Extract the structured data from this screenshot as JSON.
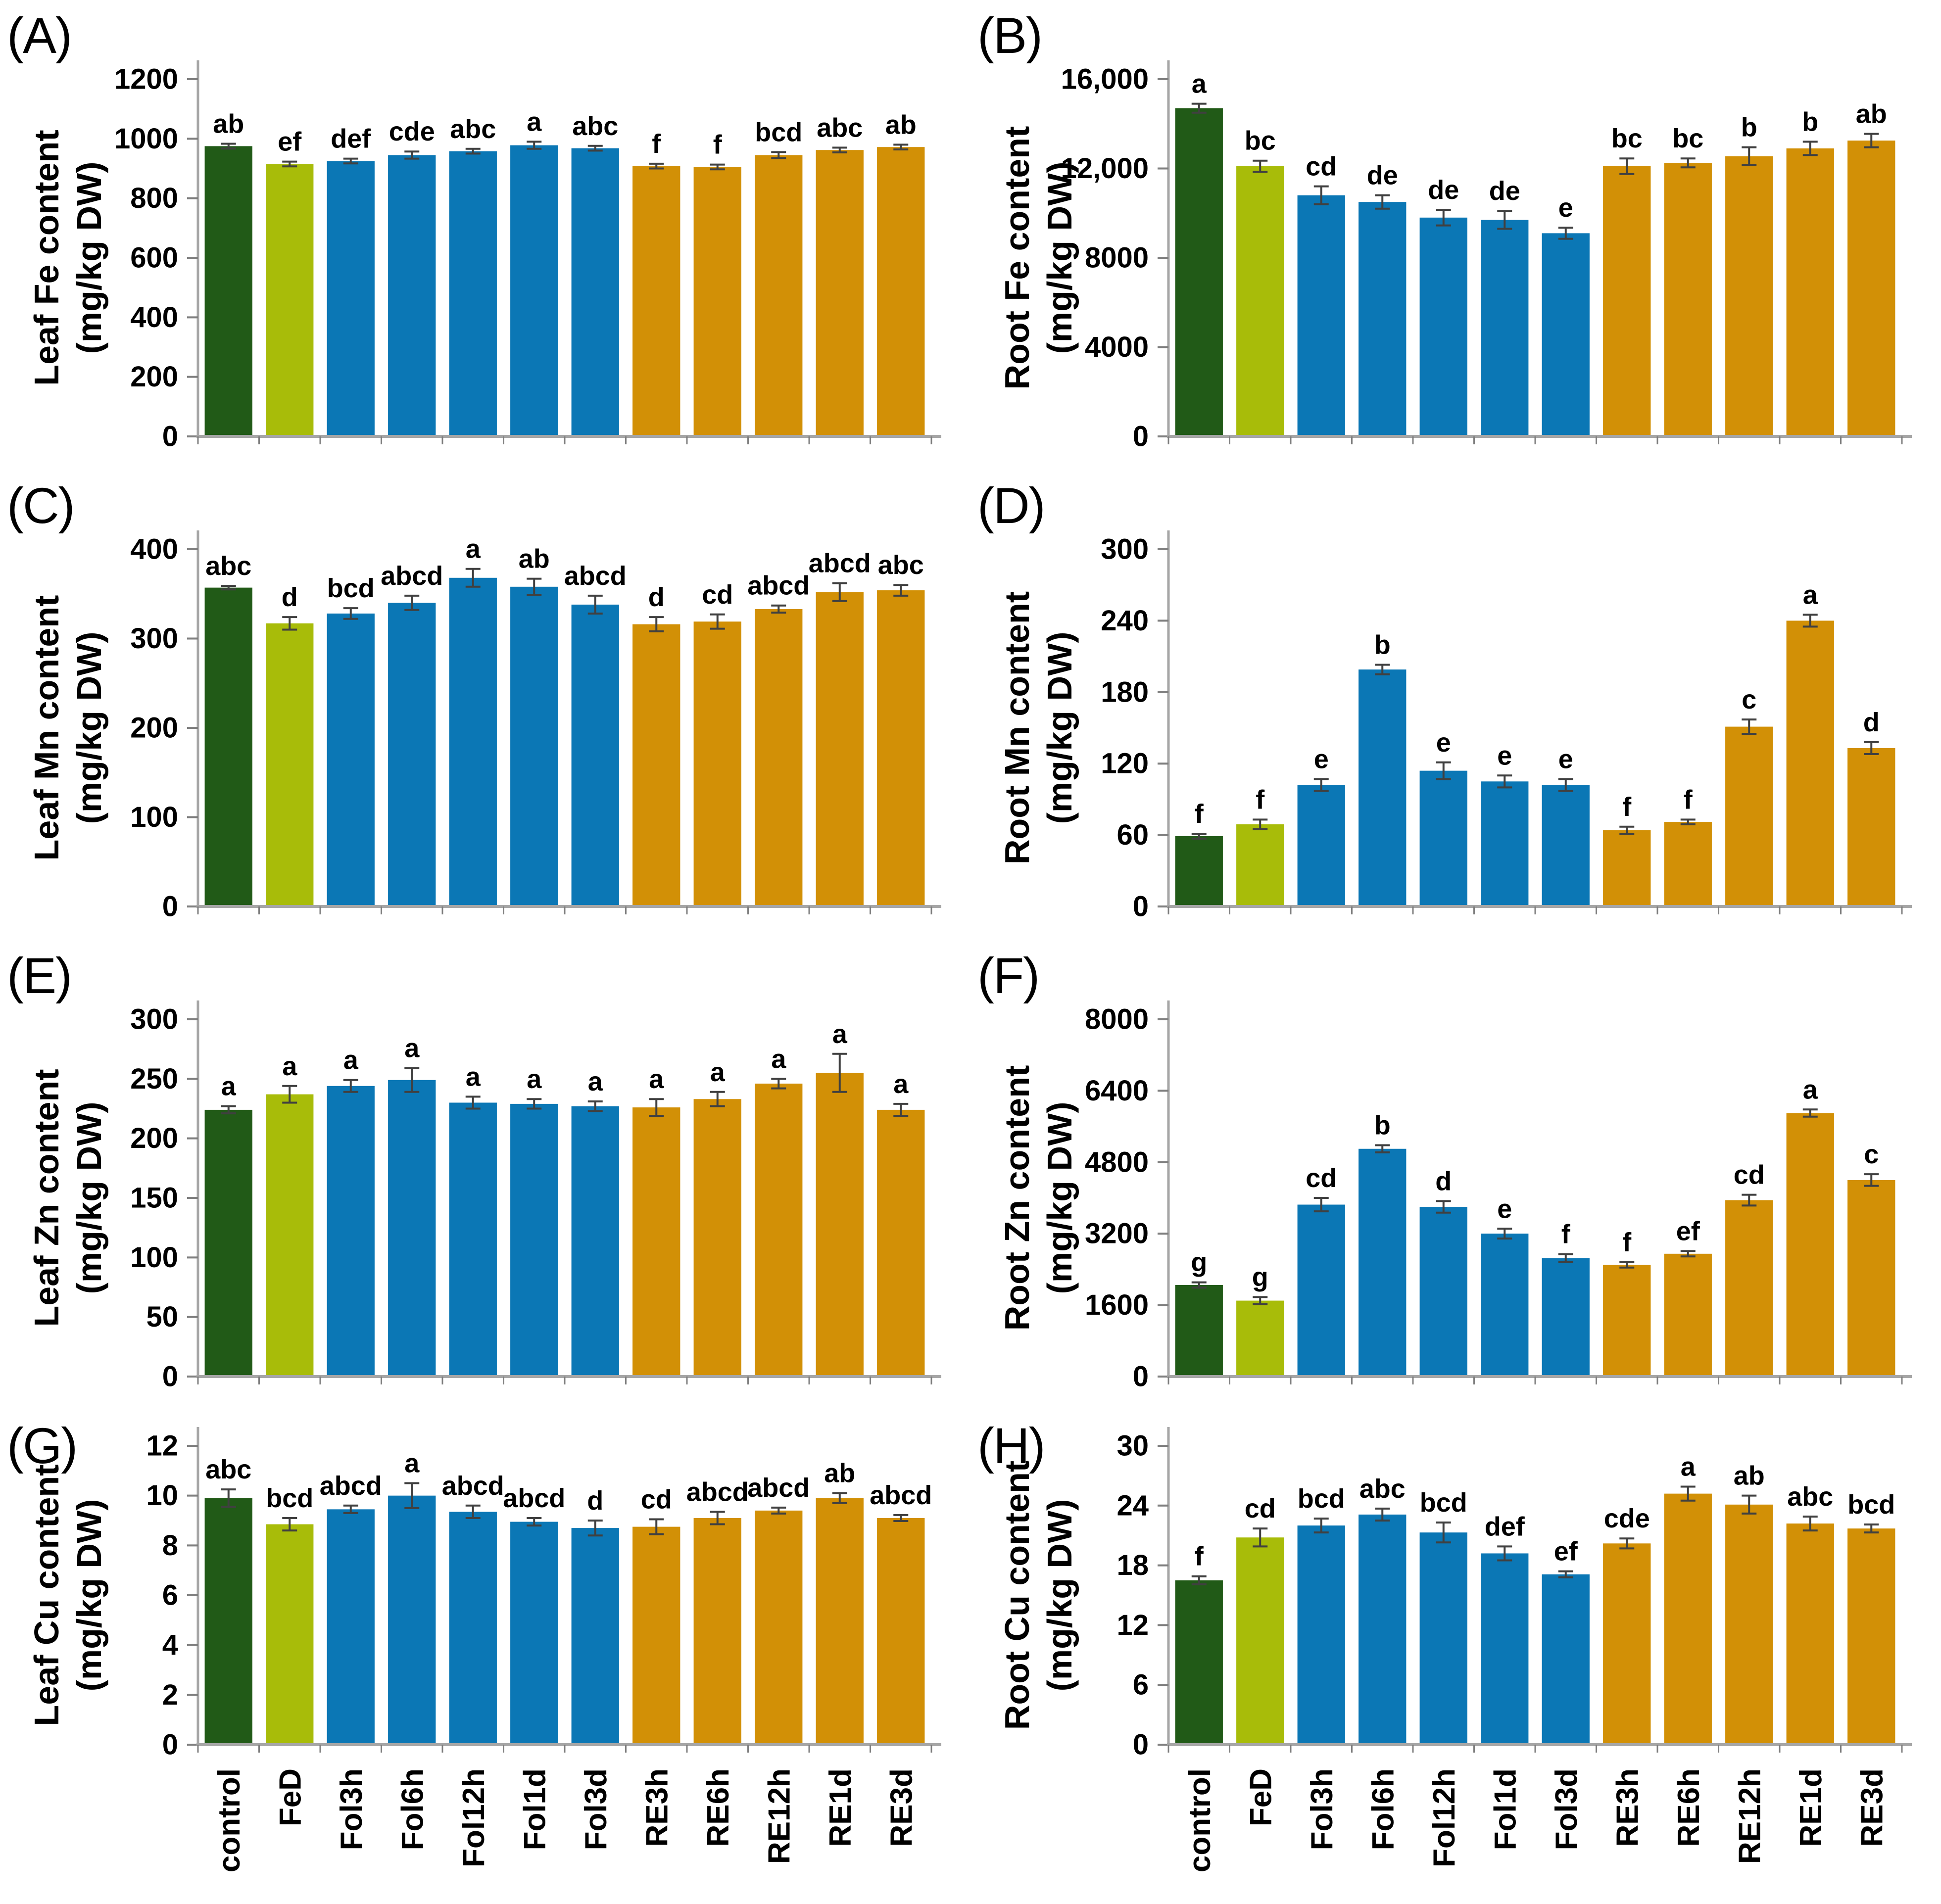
{
  "categories": [
    "control",
    "FeD",
    "Fol3h",
    "Fol6h",
    "Fol12h",
    "Fol1d",
    "Fol3d",
    "RE3h",
    "RE6h",
    "RE12h",
    "RE1d",
    "RE3d"
  ],
  "category_groups": [
    "control",
    "fed",
    "fol",
    "fol",
    "fol",
    "fol",
    "fol",
    "re",
    "re",
    "re",
    "re",
    "re"
  ],
  "colors": {
    "control": "#215a17",
    "fed": "#a8bc09",
    "fol": "#0b77b5",
    "re": "#d29006",
    "axis": "#a6a6a6",
    "tick": "#7f7f7f",
    "error": "#404040",
    "text": "#000000"
  },
  "chart_data": [
    {
      "type": "bar",
      "panel": "(A)",
      "ylabel_lines": [
        "Leaf Fe content",
        "(mg/kg DW)"
      ],
      "ylim": [
        0,
        1200
      ],
      "ytick_values": [
        0,
        200,
        400,
        600,
        800,
        1000,
        1200
      ],
      "ytick_labels": [
        "0",
        "200",
        "400",
        "600",
        "800",
        "1000",
        "1200"
      ],
      "values": [
        975,
        915,
        925,
        945,
        958,
        978,
        968,
        908,
        905,
        945,
        962,
        972
      ],
      "errors": [
        8,
        8,
        8,
        12,
        8,
        12,
        8,
        8,
        8,
        10,
        8,
        8
      ],
      "letters": [
        "ab",
        "ef",
        "def",
        "cde",
        "abc",
        "a",
        "abc",
        "f",
        "f",
        "bcd",
        "abc",
        "ab"
      ]
    },
    {
      "type": "bar",
      "panel": "(B)",
      "ylabel_lines": [
        "Root Fe content",
        "(mg/kg DW)"
      ],
      "ylim": [
        0,
        16000
      ],
      "ytick_values": [
        0,
        4000,
        8000,
        12000,
        16000
      ],
      "ytick_labels": [
        "0",
        "4000",
        "8000",
        "12,000",
        "16,000"
      ],
      "values": [
        14700,
        12100,
        10800,
        10500,
        9800,
        9700,
        9100,
        12100,
        12250,
        12550,
        12900,
        13250
      ],
      "errors": [
        200,
        250,
        400,
        300,
        350,
        400,
        250,
        350,
        200,
        400,
        300,
        300
      ],
      "letters": [
        "a",
        "bc",
        "cd",
        "de",
        "de",
        "de",
        "e",
        "bc",
        "bc",
        "b",
        "b",
        "ab"
      ]
    },
    {
      "type": "bar",
      "panel": "(C)",
      "ylabel_lines": [
        "Leaf Mn content",
        "(mg/kg DW)"
      ],
      "ylim": [
        0,
        400
      ],
      "ytick_values": [
        0,
        100,
        200,
        300,
        400
      ],
      "ytick_labels": [
        "0",
        "100",
        "200",
        "300",
        "400"
      ],
      "values": [
        357,
        317,
        328,
        340,
        368,
        358,
        338,
        316,
        319,
        333,
        352,
        354
      ],
      "errors": [
        2,
        7,
        6,
        8,
        10,
        9,
        10,
        8,
        8,
        4,
        10,
        6
      ],
      "letters": [
        "abc",
        "d",
        "bcd",
        "abcd",
        "a",
        "ab",
        "abcd",
        "d",
        "cd",
        "abcd",
        "abcd",
        "abc"
      ]
    },
    {
      "type": "bar",
      "panel": "(D)",
      "ylabel_lines": [
        "Root Mn content",
        "(mg/kg DW)"
      ],
      "ylim": [
        0,
        300
      ],
      "ytick_values": [
        0,
        60,
        120,
        180,
        240,
        300
      ],
      "ytick_labels": [
        "0",
        "60",
        "120",
        "180",
        "240",
        "300"
      ],
      "values": [
        59,
        69,
        102,
        199,
        114,
        105,
        102,
        64,
        71,
        151,
        240,
        133
      ],
      "errors": [
        2,
        4,
        5,
        4,
        7,
        5,
        5,
        3,
        2,
        6,
        5,
        5
      ],
      "letters": [
        "f",
        "f",
        "e",
        "b",
        "e",
        "e",
        "e",
        "f",
        "f",
        "c",
        "a",
        "d"
      ]
    },
    {
      "type": "bar",
      "panel": "(E)",
      "ylabel_lines": [
        "Leaf Zn content",
        "(mg/kg DW)"
      ],
      "ylim": [
        0,
        300
      ],
      "ytick_values": [
        0,
        50,
        100,
        150,
        200,
        250,
        300
      ],
      "ytick_labels": [
        "0",
        "50",
        "100",
        "150",
        "200",
        "250",
        "300"
      ],
      "values": [
        224,
        237,
        244,
        249,
        230,
        229,
        227,
        226,
        233,
        246,
        255,
        224
      ],
      "errors": [
        3,
        7,
        5,
        10,
        5,
        4,
        4,
        7,
        6,
        4,
        16,
        5
      ],
      "letters": [
        "a",
        "a",
        "a",
        "a",
        "a",
        "a",
        "a",
        "a",
        "a",
        "a",
        "a",
        "a"
      ]
    },
    {
      "type": "bar",
      "panel": "(F)",
      "ylabel_lines": [
        "Root Zn content",
        "(mg/kg DW)"
      ],
      "ylim": [
        0,
        8000
      ],
      "ytick_values": [
        0,
        1600,
        3200,
        4800,
        6400,
        8000
      ],
      "ytick_labels": [
        "0",
        "1600",
        "3200",
        "4800",
        "6400",
        "8000"
      ],
      "values": [
        2050,
        1700,
        3850,
        5100,
        3800,
        3200,
        2650,
        2500,
        2750,
        3950,
        5900,
        4400
      ],
      "errors": [
        60,
        80,
        150,
        80,
        130,
        110,
        90,
        60,
        60,
        120,
        80,
        130
      ],
      "letters": [
        "g",
        "g",
        "cd",
        "b",
        "d",
        "e",
        "f",
        "f",
        "ef",
        "cd",
        "a",
        "c"
      ]
    },
    {
      "type": "bar",
      "panel": "(G)",
      "ylabel_lines": [
        "Leaf Cu content",
        "(mg/kg DW)"
      ],
      "ylim": [
        0,
        12
      ],
      "ytick_values": [
        0,
        2,
        4,
        6,
        8,
        10,
        12
      ],
      "ytick_labels": [
        "0",
        "2",
        "4",
        "6",
        "8",
        "10",
        "12"
      ],
      "values": [
        9.9,
        8.85,
        9.45,
        10.0,
        9.35,
        8.95,
        8.7,
        8.75,
        9.1,
        9.4,
        9.9,
        9.1
      ],
      "errors": [
        0.35,
        0.25,
        0.15,
        0.5,
        0.25,
        0.15,
        0.3,
        0.3,
        0.25,
        0.12,
        0.2,
        0.12
      ],
      "letters": [
        "abc",
        "bcd",
        "abcd",
        "a",
        "abcd",
        "abcd",
        "d",
        "cd",
        "abcd",
        "abcd",
        "ab",
        "abcd"
      ]
    },
    {
      "type": "bar",
      "panel": "(H)",
      "ylabel_lines": [
        "Root Cu content",
        "(mg/kg DW)"
      ],
      "ylim": [
        0,
        30
      ],
      "ytick_values": [
        0,
        6,
        12,
        18,
        24,
        30
      ],
      "ytick_labels": [
        "0",
        "6",
        "12",
        "18",
        "24",
        "30"
      ],
      "values": [
        16.5,
        20.8,
        22.0,
        23.1,
        21.3,
        19.2,
        17.1,
        20.2,
        25.2,
        24.1,
        22.2,
        21.7
      ],
      "errors": [
        0.4,
        0.9,
        0.7,
        0.6,
        1.0,
        0.7,
        0.3,
        0.5,
        0.7,
        0.9,
        0.7,
        0.4
      ],
      "letters": [
        "f",
        "cd",
        "bcd",
        "abc",
        "bcd",
        "def",
        "ef",
        "cde",
        "a",
        "ab",
        "abc",
        "bcd"
      ]
    }
  ]
}
